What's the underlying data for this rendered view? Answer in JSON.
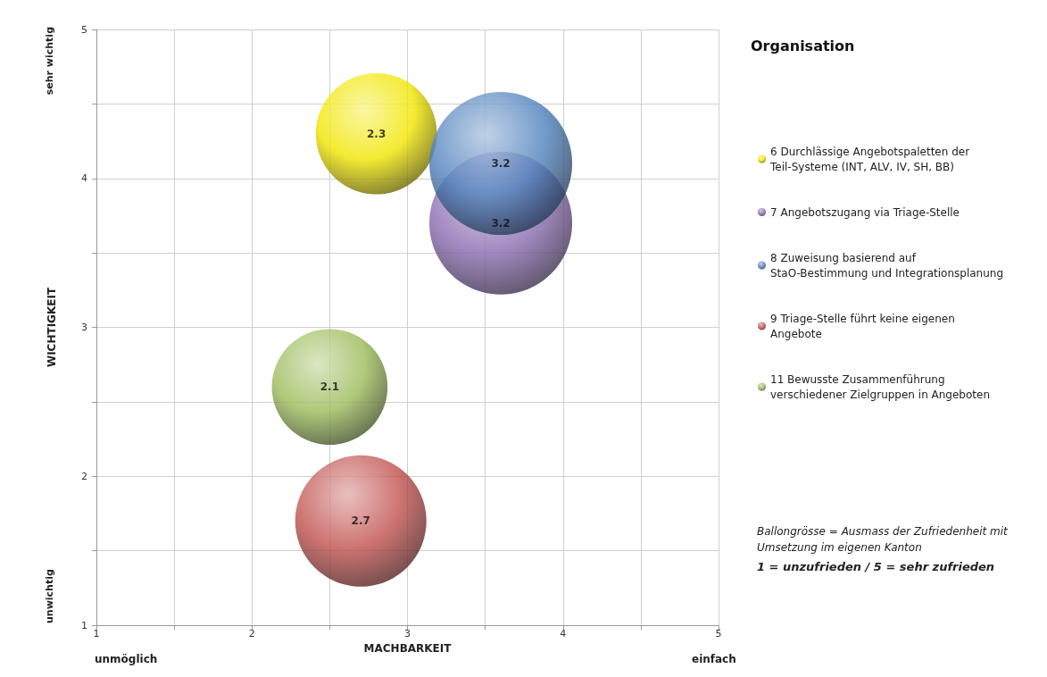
{
  "chart_data": {
    "type": "bubble",
    "title": "Organisation",
    "xlabel": "MACHBARKEIT",
    "ylabel": "WICHTIGKEIT",
    "series": [
      {
        "name": "6 Durchlässige Angebotspaletten der Teil-Systeme (INT, ALV, IV, SH, BB)",
        "color": "#f2e600",
        "x": [
          2.8
        ],
        "values": [
          4.3
        ],
        "sizes": [
          2.3
        ],
        "value_labels": [
          "2.3"
        ]
      },
      {
        "name": "7 Angebotszugang via Triage-Stelle",
        "color": "#8a6bb0",
        "x": [
          3.6
        ],
        "values": [
          3.7
        ],
        "sizes": [
          3.2
        ],
        "value_labels": [
          "3.2"
        ]
      },
      {
        "name": "8 Zuweisung basierend auf StaO-Bestimmung und Integrationsplanung",
        "color": "#4f81bd",
        "x": [
          3.6
        ],
        "values": [
          4.1
        ],
        "sizes": [
          3.2
        ],
        "value_labels": [
          "3.2"
        ]
      },
      {
        "name": "9 Triage-Stelle führt keine eigenen Angebote",
        "color": "#c0504d",
        "x": [
          2.7
        ],
        "values": [
          1.7
        ],
        "sizes": [
          2.7
        ],
        "value_labels": [
          "2.7"
        ]
      },
      {
        "name": "11 Bewusste Zusammenführung verschiedener Zielgruppen in Angeboten",
        "color": "#9bbb59",
        "x": [
          2.5
        ],
        "values": [
          2.6
        ],
        "sizes": [
          2.1
        ],
        "value_labels": [
          "2.1"
        ]
      }
    ],
    "xlim": [
      1,
      5
    ],
    "ylim": [
      1,
      5
    ],
    "xticks": [
      1,
      {
        "value": 1.5,
        "label": null
      },
      2,
      {
        "value": 2.5,
        "label": null
      },
      3,
      {
        "value": 3.5,
        "label": null
      },
      4,
      {
        "value": 4.5,
        "label": null
      },
      5
    ],
    "yticks": [
      1,
      {
        "value": 1.5,
        "label": null
      },
      2,
      {
        "value": 2.5,
        "label": null
      },
      3,
      {
        "value": 3.5,
        "label": null
      },
      4,
      {
        "value": 4.5,
        "label": null
      },
      5
    ],
    "grid": true,
    "legend": "right",
    "marker": "circle",
    "annotations": [
      "sehr wichtig",
      "unwichtig",
      "unmöglich",
      "einfach",
      "Ballongrösse = Ausmass der Zufriedenheit mit Umsetzung im eigenen Kanton",
      "1 = unzufrieden / 5 = sehr zufrieden"
    ]
  }
}
